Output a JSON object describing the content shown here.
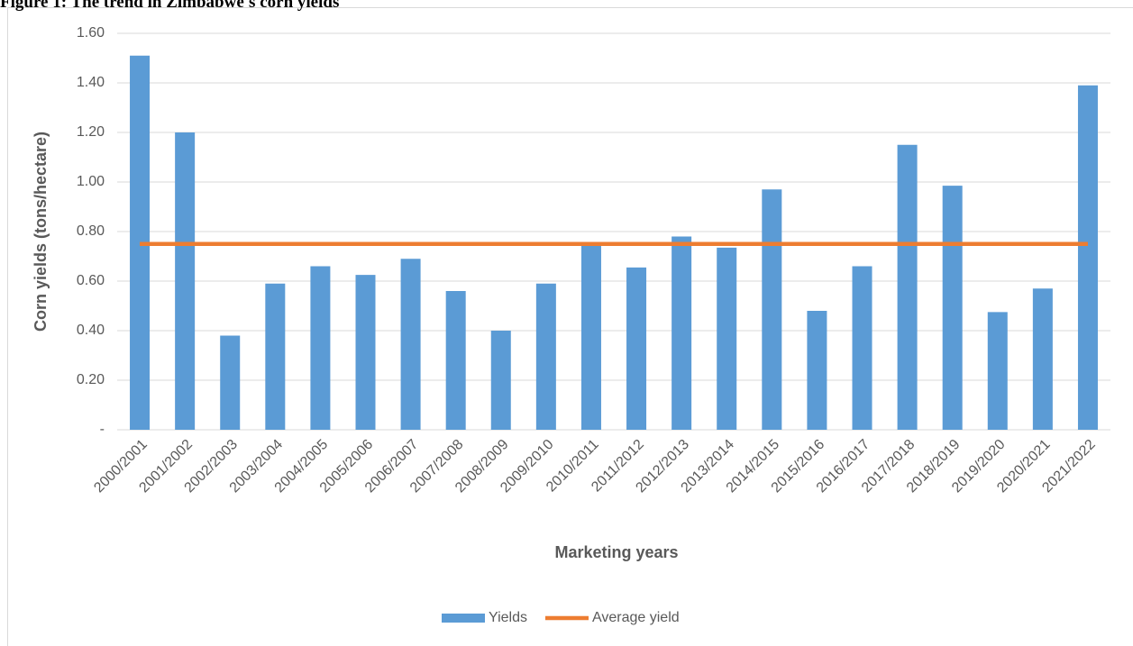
{
  "chart_data": {
    "type": "bar",
    "title": "Figure 1: The trend in Zimbabwe's corn yields",
    "x_label": "Marketing years",
    "y_label": "Corn yields (tons/hectare)",
    "categories": [
      "2000/2001",
      "2001/2002",
      "2002/2003",
      "2003/2004",
      "2004/2005",
      "2005/2006",
      "2006/2007",
      "2007/2008",
      "2008/2009",
      "2009/2010",
      "2010/2011",
      "2011/2012",
      "2012/2013",
      "2013/2014",
      "2014/2015",
      "2015/2016",
      "2016/2017",
      "2017/2018",
      "2018/2019",
      "2019/2020",
      "2020/2021",
      "2021/2022"
    ],
    "series": [
      {
        "name": "Yields",
        "type": "bar",
        "color": "#5b9bd5",
        "values": [
          1.51,
          1.2,
          0.38,
          0.59,
          0.66,
          0.625,
          0.69,
          0.56,
          0.4,
          0.59,
          0.75,
          0.655,
          0.78,
          0.735,
          0.97,
          0.48,
          0.66,
          1.15,
          0.985,
          0.475,
          0.57,
          1.39
        ]
      },
      {
        "name": "Average yield",
        "type": "line",
        "color": "#ed7d31",
        "values": [
          0.75,
          0.75,
          0.75,
          0.75,
          0.75,
          0.75,
          0.75,
          0.75,
          0.75,
          0.75,
          0.75,
          0.75,
          0.75,
          0.75,
          0.75,
          0.75,
          0.75,
          0.75,
          0.75,
          0.75,
          0.75,
          0.75
        ]
      }
    ],
    "ylim": [
      0,
      1.6
    ],
    "yticks": [
      {
        "value": 0,
        "label": "-"
      },
      {
        "value": 0.2,
        "label": "0.20"
      },
      {
        "value": 0.4,
        "label": "0.40"
      },
      {
        "value": 0.6,
        "label": "0.60"
      },
      {
        "value": 0.8,
        "label": "0.80"
      },
      {
        "value": 1.0,
        "label": "1.00"
      },
      {
        "value": 1.2,
        "label": "1.20"
      },
      {
        "value": 1.4,
        "label": "1.40"
      },
      {
        "value": 1.6,
        "label": "1.60"
      }
    ],
    "grid": true,
    "legend": "bottom"
  }
}
